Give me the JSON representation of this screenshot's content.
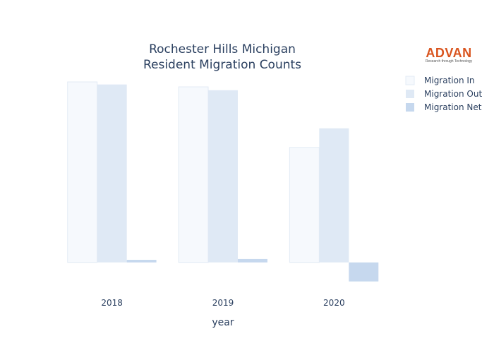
{
  "colors": {
    "migration_in": "#f6f9fd",
    "migration_in_stroke": "#e3ebf5",
    "migration_out": "#dfe9f5",
    "migration_net": "#c6d8ee",
    "text": "#2a3f5f"
  },
  "brand": {
    "name": "ADVAN",
    "tagline": "Research through Technology"
  },
  "chart_data": {
    "type": "bar",
    "title_lines": [
      "Rochester Hills Michigan",
      "Resident Migration Counts"
    ],
    "xlabel": "year",
    "ylabel": "",
    "categories": [
      "2018",
      "2019",
      "2020"
    ],
    "series": [
      {
        "name": "Migration In",
        "values": [
          9100,
          8850,
          5800
        ]
      },
      {
        "name": "Migration Out",
        "values": [
          8970,
          8680,
          6760
        ]
      },
      {
        "name": "Migration Net",
        "values": [
          130,
          170,
          -960
        ]
      }
    ],
    "ylim": [
      -1150,
      9100
    ],
    "grid": false,
    "legend_position": "top-right"
  }
}
